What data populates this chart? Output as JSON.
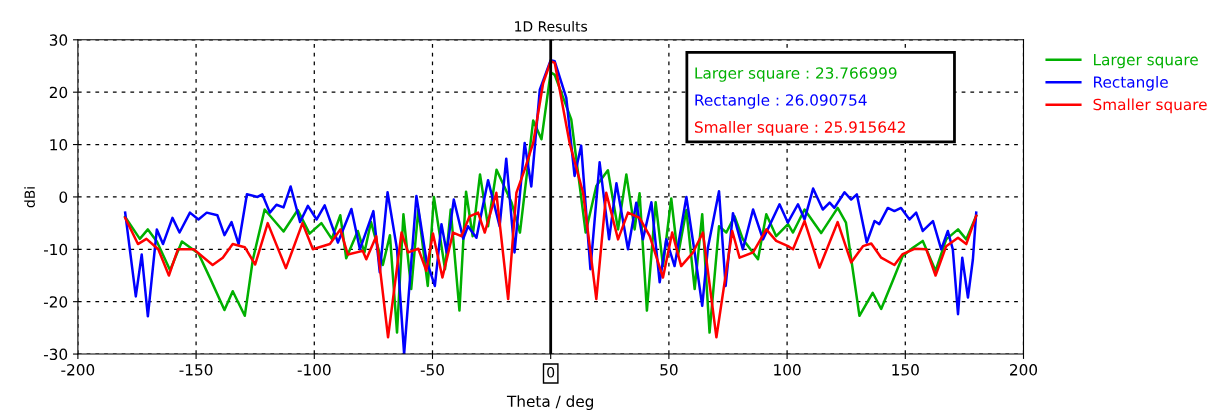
{
  "chart_data": {
    "type": "line",
    "title": "1D Results",
    "xlabel": "Theta / deg",
    "ylabel": "dBi",
    "xlim": [
      -200,
      200
    ],
    "ylim": [
      -30,
      30
    ],
    "xticks": [
      -200,
      -150,
      -100,
      -50,
      0,
      50,
      100,
      150,
      200
    ],
    "yticks": [
      -30,
      -20,
      -10,
      0,
      10,
      20,
      30
    ],
    "grid": true,
    "legend": "right",
    "line_style": "solid",
    "marker": "none",
    "ref_lines": [
      {
        "axis": "x",
        "value": 0,
        "label": "0",
        "color": "#000000"
      }
    ],
    "annotations": [
      "Larger square : 23.766999",
      "Rectangle : 26.090754",
      "Smaller square : 25.915642"
    ],
    "series": [
      {
        "name": "Larger square",
        "color": "#00b000",
        "x": [
          -180,
          -173.8,
          -170.4,
          -166.6,
          -161,
          -156,
          -149,
          -144,
          -138,
          -134.5,
          -129.4,
          -126,
          -121,
          -113,
          -107,
          -102,
          -97,
          -92.6,
          -89,
          -86.5,
          -81.6,
          -78.8,
          -76,
          -71,
          -68,
          -65,
          -62.3,
          -59,
          -56,
          -52,
          -49.4,
          -44.7,
          -42.3,
          -38.6,
          -35.8,
          -33,
          -29.9,
          -26.5,
          -22.9,
          -16.6,
          -13,
          -7.4,
          -3.9,
          0,
          1.7,
          8.7,
          14.8,
          19.3,
          24.2,
          28.5,
          32,
          35.5,
          37.6,
          40.7,
          44.4,
          47.5,
          51,
          53.8,
          57.4,
          60.9,
          64.1,
          67.2,
          71.2,
          74.3,
          77.8,
          81.3,
          87.7,
          91.2,
          95.4,
          100.4,
          102.5,
          107.4,
          114.4,
          121.4,
          124.9,
          130.6,
          136.2,
          139.8,
          144.7,
          148.9,
          153.2,
          157.4,
          162.8,
          167.3,
          172.3,
          175.8,
          180
        ],
        "values": [
          -3.8,
          -8,
          -6.2,
          -8.5,
          -14,
          -8.5,
          -10.8,
          -15.6,
          -21.6,
          -18,
          -22.7,
          -12,
          -2.4,
          -6.6,
          -2.5,
          -7,
          -5,
          -8,
          -3.5,
          -11.7,
          -6.5,
          -10.6,
          -4.8,
          -13,
          -7.3,
          -25.9,
          -3.3,
          -17.6,
          -2.4,
          -17,
          0,
          -13.8,
          -2.4,
          -21.7,
          1,
          -7.5,
          4.3,
          -5.6,
          5.2,
          -1,
          -6.8,
          14.6,
          11,
          23.8,
          23.3,
          14.8,
          -6.8,
          2.1,
          5.1,
          -6.2,
          4.3,
          -6.2,
          0.7,
          -21.7,
          -1,
          -13.2,
          -0.3,
          -11.3,
          -2.5,
          -17.6,
          -3.3,
          -25.9,
          -5.6,
          -6.8,
          -3.7,
          -8.1,
          -11.9,
          -3.3,
          -7.5,
          -5.2,
          -6.8,
          -2.4,
          -6.9,
          -2.1,
          -4.9,
          -22.7,
          -18.3,
          -21.4,
          -16,
          -11.3,
          -9.7,
          -8.4,
          -14.1,
          -8.1,
          -6.2,
          -8.1,
          -3.6
        ]
      },
      {
        "name": "Rectangle",
        "color": "#0000ff",
        "x": [
          -180,
          -175.5,
          -173,
          -170.4,
          -166.6,
          -164,
          -160,
          -157,
          -152.6,
          -149,
          -145.5,
          -141,
          -138,
          -135,
          -132,
          -128.5,
          -124,
          -122,
          -118.8,
          -116,
          -113,
          -110,
          -106,
          -102.7,
          -99,
          -95.6,
          -90,
          -84.3,
          -80.7,
          -75,
          -72.3,
          -69,
          -65,
          -62,
          -56.8,
          -52.6,
          -49,
          -46.2,
          -44,
          -41,
          -37,
          -35,
          -31.4,
          -26.5,
          -21.6,
          -18.8,
          -15.3,
          -11,
          -8.2,
          -4.6,
          0,
          1.7,
          6.6,
          10.1,
          12.9,
          16.8,
          20.7,
          24.7,
          27.8,
          32.7,
          36.2,
          39,
          42.6,
          46.1,
          48.9,
          52.4,
          57.4,
          60.9,
          64.1,
          66.5,
          71.2,
          74,
          77.1,
          81.3,
          85.6,
          89.8,
          96.8,
          100.3,
          104.6,
          107.4,
          111,
          115.1,
          118,
          120,
          124.3,
          127.1,
          129.5,
          133.7,
          137,
          139,
          142.6,
          145.4,
          148.2,
          151.8,
          154.6,
          157.4,
          161.7,
          165.2,
          168,
          170.1,
          172.3,
          174.1,
          176.5,
          178.6,
          180
        ],
        "values": [
          -3,
          -19,
          -11,
          -22.8,
          -6.2,
          -9,
          -4,
          -6.8,
          -3,
          -4.3,
          -3,
          -3.5,
          -7.3,
          -4.8,
          -9,
          0.5,
          0,
          0.5,
          -3,
          -1.5,
          -2,
          2,
          -4.8,
          -1.7,
          -4.3,
          -1.6,
          -8.7,
          -2.3,
          -10,
          -2.7,
          -14.4,
          0.9,
          -10,
          -30,
          0.2,
          -12,
          -17,
          -5.2,
          -10.6,
          -0.5,
          -8,
          -5.6,
          -7.8,
          3.2,
          -5.6,
          7.3,
          -10.6,
          10.3,
          2,
          20.5,
          26.1,
          25.9,
          18.9,
          4,
          9.8,
          -13.8,
          6.6,
          -8.1,
          2.6,
          -10,
          -1.1,
          -8.1,
          -1,
          -16.3,
          -8.1,
          -13.2,
          0,
          -10.6,
          -20.8,
          -9.7,
          1.1,
          -17,
          -3.1,
          -10,
          -2.4,
          -8.1,
          -1.4,
          -4.9,
          -1.4,
          -4.3,
          1.6,
          -2.4,
          -1.1,
          -2.1,
          0.9,
          -0.5,
          0.5,
          -8.7,
          -4.6,
          -5.2,
          -2.1,
          -2.7,
          -2.1,
          -4.3,
          -3,
          -6.5,
          -4.6,
          -10,
          -6.5,
          -10,
          -22.4,
          -11.6,
          -19.2,
          -11.9,
          -3
        ]
      },
      {
        "name": "Smaller square",
        "color": "#ff0000",
        "x": [
          -180,
          -174.6,
          -171,
          -166,
          -161.5,
          -157.7,
          -151,
          -143,
          -138.7,
          -134.5,
          -129.4,
          -125,
          -119.7,
          -112,
          -105,
          -100.6,
          -93.4,
          -89,
          -85.8,
          -79.5,
          -78,
          -73.8,
          -68.8,
          -63.1,
          -60.3,
          -56,
          -52.6,
          -49.8,
          -45.8,
          -41.3,
          -37.8,
          -34.3,
          -30.7,
          -27.9,
          -23,
          -18,
          -14.5,
          -11,
          -7.4,
          -3.2,
          0,
          1.7,
          8,
          13.7,
          19.3,
          23.5,
          28.5,
          32.7,
          37.6,
          41.9,
          47.5,
          51.4,
          55.2,
          60.2,
          64.4,
          70.1,
          76.8,
          79.9,
          85.6,
          91.2,
          95.4,
          100.4,
          102.5,
          107.4,
          113.7,
          121.4,
          127.1,
          132.1,
          135.6,
          139.8,
          145.4,
          148.9,
          153.9,
          158.9,
          162.8,
          167.3,
          172.3,
          175.8,
          180
        ],
        "values": [
          -4,
          -9,
          -8,
          -10,
          -15,
          -10,
          -10,
          -13,
          -11.6,
          -9,
          -9.6,
          -12.9,
          -5,
          -13.6,
          -5,
          -10,
          -9,
          -6.2,
          -11,
          -10.3,
          -11.9,
          -7.5,
          -26.8,
          -6.8,
          -10.6,
          -9.9,
          -14.1,
          -7,
          -15.4,
          -6.8,
          -7.5,
          -3.7,
          -3,
          -6.8,
          0.8,
          -19.5,
          0.8,
          5.2,
          10.3,
          21.7,
          25.9,
          25.6,
          10.3,
          0.8,
          -19.5,
          0.8,
          -8.1,
          -3,
          -4,
          -7.5,
          -15.4,
          -6.8,
          -13.2,
          -10.6,
          -6.8,
          -26.8,
          -6.5,
          -11.6,
          -10.6,
          -6.2,
          -8.4,
          -9.4,
          -10,
          -4.6,
          -13.5,
          -4.8,
          -12.5,
          -9.4,
          -8.9,
          -11.6,
          -13,
          -10.9,
          -9.9,
          -10,
          -15,
          -9.4,
          -7.8,
          -9,
          -3.6
        ]
      }
    ]
  }
}
